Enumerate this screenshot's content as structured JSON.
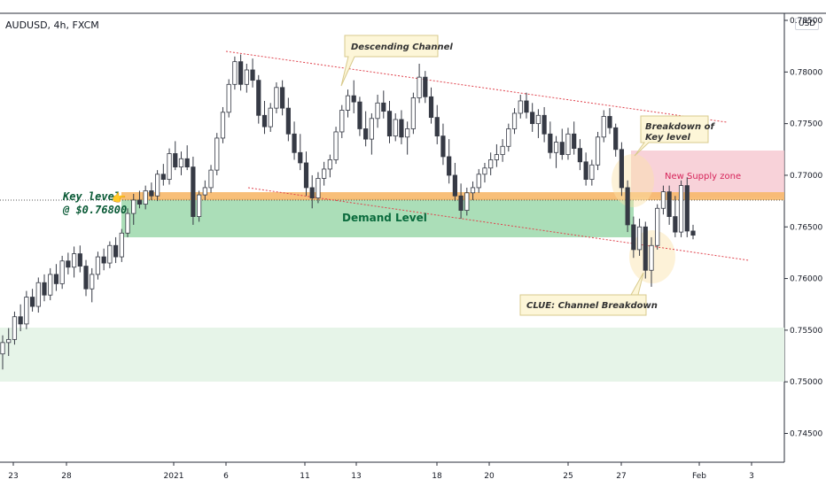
{
  "header": {
    "symbol": "AUDUSD, 4h, FXCM",
    "currency_badge": "USD"
  },
  "annotations": {
    "descending_channel": "Descending Channel",
    "breakdown_line1": "Breakdown of",
    "breakdown_line2": "Key level",
    "supply_zone": "New Supply zone",
    "demand_level": "Demand Level",
    "key_level_line1": "Key level",
    "key_level_line2": "@ $0.76800",
    "clue": "CLUE: Channel Breakdown",
    "hand_glyph": "👉"
  },
  "colors": {
    "up": "#ffffff",
    "down": "#363a45",
    "outline": "#363a45",
    "key_band": "#f7b86a",
    "demand_zone": "#8fd3a0",
    "supply_zone": "#f6c7cf",
    "lower_zone": "#e6f4e8",
    "channel": "#e0434d"
  },
  "chart_data": {
    "type": "candlestick",
    "title": "AUDUSD, 4h, FXCM",
    "y_ticks": [
      "0.78500",
      "0.78000",
      "0.77500",
      "0.77000",
      "0.76500",
      "0.76000",
      "0.75500",
      "0.75000",
      "0.74500"
    ],
    "x_ticks": [
      "23",
      "28",
      "2021",
      "6",
      "11",
      "13",
      "18",
      "20",
      "25",
      "27",
      "Feb",
      "3"
    ],
    "ylim": [
      0.7423,
      0.7856
    ],
    "key_level": 0.768,
    "zones": [
      {
        "name": "Demand Level",
        "from": 0.7641,
        "to": 0.7679
      },
      {
        "name": "Key level",
        "from": 0.7675,
        "to": 0.7682
      },
      {
        "name": "New Supply zone",
        "from": 0.7677,
        "to": 0.7722
      },
      {
        "name": "lower zone",
        "from": 0.7505,
        "to": 0.7557
      }
    ],
    "channel_upper": [
      [
        0.7812
      ],
      [
        0.7748
      ]
    ],
    "channel_lower": [
      [
        0.7694
      ],
      [
        0.7618
      ]
    ],
    "candles": [
      [
        0.7527,
        0.7545,
        0.7512,
        0.7538
      ],
      [
        0.7538,
        0.7552,
        0.7525,
        0.7541
      ],
      [
        0.7541,
        0.7568,
        0.7536,
        0.7563
      ],
      [
        0.7563,
        0.7575,
        0.7549,
        0.7556
      ],
      [
        0.7556,
        0.7588,
        0.7551,
        0.7582
      ],
      [
        0.7582,
        0.759,
        0.7568,
        0.7573
      ],
      [
        0.7573,
        0.7601,
        0.7567,
        0.7596
      ],
      [
        0.7596,
        0.7604,
        0.7578,
        0.7584
      ],
      [
        0.7584,
        0.761,
        0.7579,
        0.7604
      ],
      [
        0.7604,
        0.7614,
        0.7588,
        0.7595
      ],
      [
        0.7595,
        0.7622,
        0.759,
        0.7617
      ],
      [
        0.7617,
        0.7625,
        0.7604,
        0.7611
      ],
      [
        0.7611,
        0.7631,
        0.7601,
        0.7624
      ],
      [
        0.7624,
        0.7632,
        0.7606,
        0.7612
      ],
      [
        0.7612,
        0.7618,
        0.7583,
        0.759
      ],
      [
        0.759,
        0.761,
        0.7577,
        0.7604
      ],
      [
        0.7604,
        0.7626,
        0.7599,
        0.7621
      ],
      [
        0.7621,
        0.7629,
        0.7608,
        0.7615
      ],
      [
        0.7615,
        0.7636,
        0.761,
        0.7632
      ],
      [
        0.7632,
        0.764,
        0.7615,
        0.7621
      ],
      [
        0.7621,
        0.7648,
        0.7616,
        0.7644
      ],
      [
        0.7644,
        0.7668,
        0.764,
        0.7663
      ],
      [
        0.7663,
        0.7682,
        0.7652,
        0.7676
      ],
      [
        0.7676,
        0.7685,
        0.7668,
        0.7672
      ],
      [
        0.7672,
        0.769,
        0.7667,
        0.7685
      ],
      [
        0.7685,
        0.7693,
        0.7676,
        0.768
      ],
      [
        0.768,
        0.7705,
        0.7675,
        0.7701
      ],
      [
        0.7701,
        0.7711,
        0.769,
        0.7696
      ],
      [
        0.7696,
        0.7726,
        0.7691,
        0.7721
      ],
      [
        0.7721,
        0.7733,
        0.7705,
        0.7708
      ],
      [
        0.7708,
        0.7723,
        0.77,
        0.7716
      ],
      [
        0.7716,
        0.7729,
        0.7705,
        0.7708
      ],
      [
        0.7708,
        0.7718,
        0.7652,
        0.766
      ],
      [
        0.766,
        0.7685,
        0.7655,
        0.7681
      ],
      [
        0.7681,
        0.7695,
        0.7676,
        0.7688
      ],
      [
        0.7688,
        0.771,
        0.7683,
        0.7705
      ],
      [
        0.7705,
        0.7741,
        0.77,
        0.7736
      ],
      [
        0.7736,
        0.7766,
        0.7731,
        0.7761
      ],
      [
        0.7761,
        0.7793,
        0.7756,
        0.7788
      ],
      [
        0.7788,
        0.7815,
        0.7783,
        0.781
      ],
      [
        0.781,
        0.7817,
        0.7782,
        0.7788
      ],
      [
        0.7788,
        0.7808,
        0.778,
        0.7802
      ],
      [
        0.7802,
        0.7813,
        0.7785,
        0.7792
      ],
      [
        0.7792,
        0.7797,
        0.775,
        0.7758
      ],
      [
        0.7758,
        0.7772,
        0.774,
        0.7747
      ],
      [
        0.7747,
        0.777,
        0.7742,
        0.7765
      ],
      [
        0.7765,
        0.779,
        0.776,
        0.7785
      ],
      [
        0.7785,
        0.7792,
        0.7758,
        0.7765
      ],
      [
        0.7765,
        0.7775,
        0.7733,
        0.774
      ],
      [
        0.774,
        0.7752,
        0.7715,
        0.7722
      ],
      [
        0.7722,
        0.774,
        0.7705,
        0.7712
      ],
      [
        0.7712,
        0.7723,
        0.768,
        0.7688
      ],
      [
        0.7688,
        0.77,
        0.7668,
        0.7678
      ],
      [
        0.7678,
        0.7703,
        0.7673,
        0.7697
      ],
      [
        0.7697,
        0.7713,
        0.769,
        0.7706
      ],
      [
        0.7706,
        0.772,
        0.7698,
        0.7715
      ],
      [
        0.7715,
        0.7747,
        0.7711,
        0.7742
      ],
      [
        0.7742,
        0.7768,
        0.7736,
        0.7763
      ],
      [
        0.7763,
        0.7783,
        0.7756,
        0.7777
      ],
      [
        0.7777,
        0.7792,
        0.776,
        0.7771
      ],
      [
        0.7771,
        0.7776,
        0.7738,
        0.7745
      ],
      [
        0.7745,
        0.7762,
        0.7728,
        0.7735
      ],
      [
        0.7735,
        0.776,
        0.772,
        0.7755
      ],
      [
        0.7755,
        0.7778,
        0.7746,
        0.777
      ],
      [
        0.777,
        0.7782,
        0.7755,
        0.7762
      ],
      [
        0.7762,
        0.7772,
        0.7731,
        0.7738
      ],
      [
        0.7738,
        0.776,
        0.7733,
        0.7754
      ],
      [
        0.7754,
        0.7763,
        0.773,
        0.7737
      ],
      [
        0.7737,
        0.7752,
        0.772,
        0.7745
      ],
      [
        0.7745,
        0.778,
        0.774,
        0.7775
      ],
      [
        0.7775,
        0.7808,
        0.777,
        0.7795
      ],
      [
        0.7795,
        0.7801,
        0.777,
        0.7776
      ],
      [
        0.7776,
        0.7785,
        0.775,
        0.7756
      ],
      [
        0.7756,
        0.7768,
        0.773,
        0.7738
      ],
      [
        0.7738,
        0.775,
        0.771,
        0.7718
      ],
      [
        0.7718,
        0.7735,
        0.7692,
        0.77
      ],
      [
        0.77,
        0.7712,
        0.7675,
        0.768
      ],
      [
        0.768,
        0.7692,
        0.7658,
        0.7666
      ],
      [
        0.7666,
        0.7688,
        0.7661,
        0.7683
      ],
      [
        0.7683,
        0.7694,
        0.7676,
        0.7688
      ],
      [
        0.7688,
        0.7706,
        0.7683,
        0.7701
      ],
      [
        0.7701,
        0.7712,
        0.7693,
        0.7707
      ],
      [
        0.7707,
        0.7722,
        0.77,
        0.7715
      ],
      [
        0.7715,
        0.773,
        0.7708,
        0.772
      ],
      [
        0.772,
        0.7735,
        0.7713,
        0.7728
      ],
      [
        0.7728,
        0.775,
        0.7723,
        0.7745
      ],
      [
        0.7745,
        0.7765,
        0.774,
        0.776
      ],
      [
        0.776,
        0.7778,
        0.7755,
        0.7772
      ],
      [
        0.7772,
        0.778,
        0.7755,
        0.7761
      ],
      [
        0.7761,
        0.777,
        0.7742,
        0.775
      ],
      [
        0.775,
        0.7764,
        0.7736,
        0.7758
      ],
      [
        0.7758,
        0.7766,
        0.7732,
        0.774
      ],
      [
        0.774,
        0.7752,
        0.7716,
        0.7722
      ],
      [
        0.7722,
        0.7738,
        0.7707,
        0.7732
      ],
      [
        0.7732,
        0.7745,
        0.7715,
        0.772
      ],
      [
        0.772,
        0.7746,
        0.7715,
        0.774
      ],
      [
        0.774,
        0.7752,
        0.772,
        0.7726
      ],
      [
        0.7726,
        0.7735,
        0.7705,
        0.7713
      ],
      [
        0.7713,
        0.7722,
        0.769,
        0.7696
      ],
      [
        0.7696,
        0.7715,
        0.769,
        0.771
      ],
      [
        0.771,
        0.7742,
        0.7705,
        0.7737
      ],
      [
        0.7737,
        0.7763,
        0.7732,
        0.7757
      ],
      [
        0.7757,
        0.7765,
        0.774,
        0.7746
      ],
      [
        0.7746,
        0.775,
        0.7718,
        0.7725
      ],
      [
        0.7725,
        0.7732,
        0.768,
        0.7688
      ],
      [
        0.7688,
        0.7695,
        0.7645,
        0.7652
      ],
      [
        0.7652,
        0.766,
        0.762,
        0.7628
      ],
      [
        0.7628,
        0.7658,
        0.7622,
        0.765
      ],
      [
        0.765,
        0.7655,
        0.76,
        0.7608
      ],
      [
        0.7608,
        0.764,
        0.7592,
        0.7632
      ],
      [
        0.7632,
        0.7672,
        0.7628,
        0.7668
      ],
      [
        0.7668,
        0.769,
        0.7662,
        0.7684
      ],
      [
        0.7684,
        0.769,
        0.7652,
        0.766
      ],
      [
        0.766,
        0.768,
        0.764,
        0.7645
      ],
      [
        0.7645,
        0.7695,
        0.764,
        0.769
      ],
      [
        0.769,
        0.7698,
        0.764,
        0.7646
      ],
      [
        0.7646,
        0.7652,
        0.7638,
        0.7642
      ]
    ]
  }
}
